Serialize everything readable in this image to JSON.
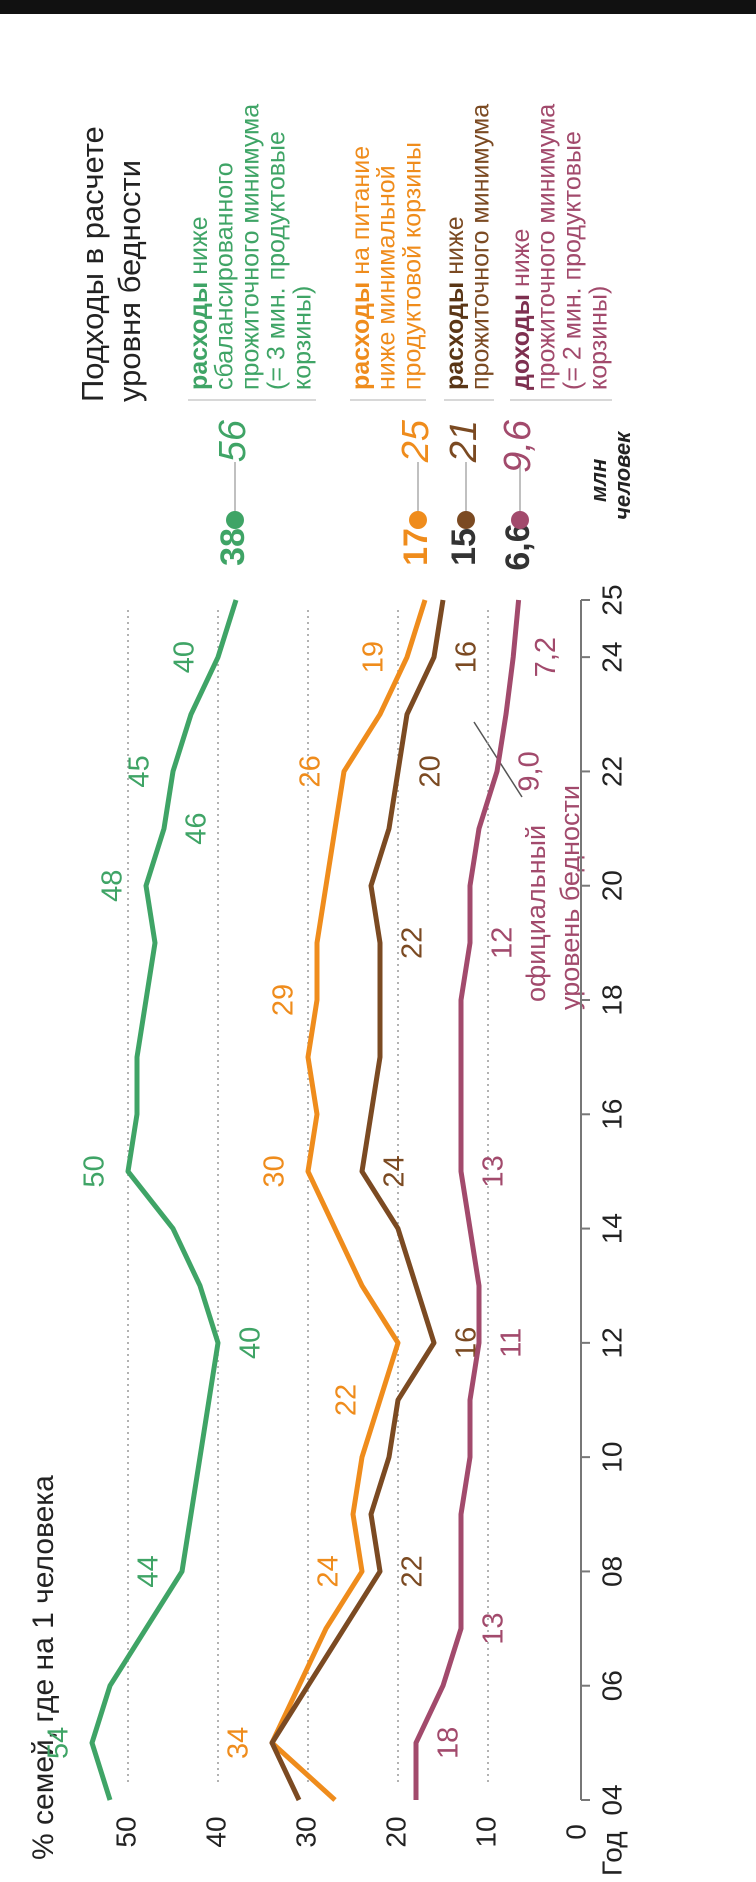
{
  "chart_data": {
    "type": "line",
    "ylabel": "% семей, где на 1 человека",
    "xlabel": "Год",
    "header": [
      "Подходы в расчете",
      "уровня бедности"
    ],
    "units_label": [
      "млн",
      "человек"
    ],
    "annotation": [
      "официальный",
      "уровень бедности"
    ],
    "x": [
      2004,
      2005,
      2006,
      2007,
      2008,
      2009,
      2010,
      2011,
      2012,
      2013,
      2014,
      2015,
      2016,
      2017,
      2018,
      2019,
      2020,
      2021,
      2022,
      2023,
      2024,
      2025
    ],
    "xlim": [
      2004,
      2025
    ],
    "xticks": [
      {
        "value": 2004,
        "label": "04"
      },
      {
        "value": 2006,
        "label": "06"
      },
      {
        "value": 2008,
        "label": "08"
      },
      {
        "value": 2010,
        "label": "10"
      },
      {
        "value": 2012,
        "label": "12"
      },
      {
        "value": 2014,
        "label": "14"
      },
      {
        "value": 2016,
        "label": "16"
      },
      {
        "value": 2018,
        "label": "18"
      },
      {
        "value": 2020,
        "label": "20"
      },
      {
        "value": 2022,
        "label": "22"
      },
      {
        "value": 2024,
        "label": "24"
      },
      {
        "value": 2025,
        "label": "25"
      }
    ],
    "ylim": [
      0,
      50
    ],
    "yticks": [
      0,
      10,
      20,
      30,
      40,
      50
    ],
    "grid": true,
    "series": [
      {
        "name": "расходы",
        "label_lines": [
          "ниже",
          "сбалансированного",
          "прожиточного минимума",
          "(= 3 мин. продуктовые",
          "корзины)"
        ],
        "color": "#3fa466",
        "millions": 56,
        "values": [
          52,
          54,
          52,
          48,
          44,
          43,
          42,
          41,
          40,
          42,
          45,
          50,
          49,
          49,
          48,
          47,
          48,
          46,
          45,
          43,
          40,
          38
        ],
        "value_labels": [
          null,
          "54",
          null,
          null,
          "44",
          null,
          null,
          null,
          "40",
          null,
          null,
          "50",
          null,
          null,
          null,
          null,
          "48",
          "46",
          "45",
          null,
          "40",
          "38"
        ]
      },
      {
        "name": "расходы",
        "label_lines": [
          "на питание",
          "ниже минимальной",
          "продуктовой корзины"
        ],
        "color": "#ef8c1c",
        "millions": 25,
        "values": [
          27,
          34,
          31,
          28,
          24,
          25,
          24,
          22,
          20,
          24,
          27,
          30,
          29,
          30,
          29,
          29,
          28,
          27,
          26,
          22,
          19,
          17
        ],
        "value_labels": [
          null,
          "34",
          null,
          null,
          "24",
          null,
          null,
          "22",
          null,
          null,
          null,
          "30",
          null,
          null,
          "29",
          null,
          null,
          null,
          "26",
          null,
          "19",
          "17"
        ]
      },
      {
        "name": "расходы",
        "label_lines": [
          "ниже",
          "прожиточного минимума"
        ],
        "color": "#7b4a22",
        "millions": 21,
        "values": [
          31,
          34,
          30,
          26,
          22,
          23,
          21,
          20,
          16,
          18,
          20,
          24,
          23,
          22,
          22,
          22,
          23,
          21,
          20,
          19,
          16,
          15
        ],
        "value_labels": [
          null,
          null,
          null,
          null,
          "22",
          null,
          null,
          null,
          "16",
          null,
          null,
          "24",
          null,
          null,
          null,
          "22",
          null,
          null,
          "20",
          null,
          "16",
          "15"
        ]
      },
      {
        "name": "доходы",
        "label_lines": [
          "ниже",
          "прожиточного минимума",
          "(= 2 мин. продуктовые",
          "корзины)"
        ],
        "color": "#a24a6c",
        "millions": 9.6,
        "millions_label": "9,6",
        "values": [
          18,
          18,
          15,
          13,
          13,
          13,
          12,
          12,
          11,
          11,
          12,
          13,
          13,
          13,
          13,
          12,
          12,
          11,
          9,
          8,
          7.2,
          6.6
        ],
        "value_labels": [
          null,
          "18",
          null,
          "13",
          null,
          null,
          null,
          null,
          "11",
          null,
          null,
          "13",
          null,
          null,
          null,
          "12",
          null,
          null,
          "9,0",
          null,
          "7,2",
          "6,6"
        ]
      }
    ]
  }
}
